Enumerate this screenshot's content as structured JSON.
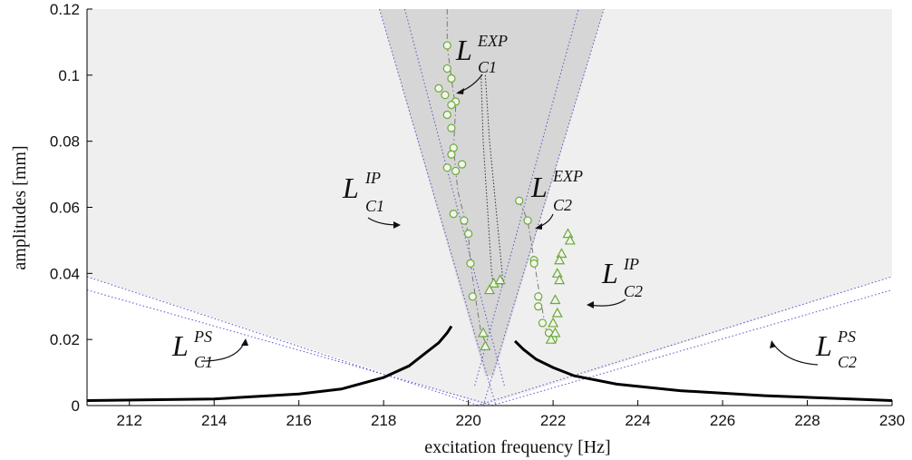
{
  "chart_data": {
    "type": "scatter",
    "xlabel": "excitation frequency [Hz]",
    "ylabel": "amplitudes [mm]",
    "xlim": [
      211,
      230
    ],
    "ylim": [
      0,
      0.12
    ],
    "x_ticks": [
      "212",
      "214",
      "216",
      "218",
      "220",
      "222",
      "224",
      "226",
      "228",
      "230"
    ],
    "y_ticks": [
      "0",
      "0.02",
      "0.04",
      "0.06",
      "0.08",
      "0.1",
      "0.12"
    ],
    "x_tick_values": [
      212,
      214,
      216,
      218,
      220,
      222,
      224,
      226,
      228,
      230
    ],
    "y_tick_values": [
      0,
      0.02,
      0.04,
      0.06,
      0.08,
      0.1,
      0.12
    ],
    "grid": false,
    "colors": {
      "outer_region": "#efefef",
      "inner_region": "#d6d6d6",
      "boundary": "#5555cc",
      "response_curve": "#000000",
      "markers": "#6aaa3a"
    },
    "regions": [
      {
        "name": "PS region",
        "lines": [
          {
            "x0": 211,
            "y0": 0.039,
            "x1": 220.4,
            "y1": 0
          },
          {
            "x0": 220.4,
            "y0": 0,
            "x1": 230,
            "y1": 0.039
          }
        ]
      },
      {
        "name": "IP region",
        "lines": [
          {
            "x0": 217.9,
            "y0": 0.12,
            "x1": 220.4,
            "y1": 0.009
          },
          {
            "x0": 220.6,
            "y0": 0.009,
            "x1": 223.2,
            "y1": 0.12
          }
        ]
      }
    ],
    "response_curve": {
      "left": [
        [
          211,
          0.0015
        ],
        [
          214,
          0.002
        ],
        [
          216,
          0.0035
        ],
        [
          217,
          0.005
        ],
        [
          218,
          0.0085
        ],
        [
          218.6,
          0.012
        ],
        [
          219,
          0.016
        ],
        [
          219.3,
          0.019
        ],
        [
          219.5,
          0.022
        ],
        [
          219.6,
          0.024
        ]
      ],
      "right": [
        [
          221.1,
          0.0195
        ],
        [
          221.3,
          0.017
        ],
        [
          221.6,
          0.014
        ],
        [
          222,
          0.0115
        ],
        [
          222.5,
          0.009
        ],
        [
          223.5,
          0.0065
        ],
        [
          225,
          0.0045
        ],
        [
          227,
          0.003
        ],
        [
          230,
          0.0015
        ]
      ]
    },
    "series": [
      {
        "marker": "circle",
        "values": [
          [
            219.5,
            0.109
          ],
          [
            219.5,
            0.102
          ],
          [
            219.3,
            0.096
          ],
          [
            219.45,
            0.094
          ],
          [
            219.6,
            0.099
          ],
          [
            219.7,
            0.092
          ],
          [
            219.6,
            0.091
          ],
          [
            219.5,
            0.088
          ],
          [
            219.6,
            0.084
          ],
          [
            219.65,
            0.078
          ],
          [
            219.6,
            0.076
          ],
          [
            219.7,
            0.071
          ],
          [
            219.85,
            0.073
          ],
          [
            219.5,
            0.072
          ],
          [
            219.65,
            0.058
          ],
          [
            219.9,
            0.056
          ],
          [
            220.0,
            0.052
          ],
          [
            220.05,
            0.043
          ],
          [
            220.1,
            0.033
          ],
          [
            221.2,
            0.062
          ],
          [
            221.4,
            0.056
          ],
          [
            221.55,
            0.044
          ],
          [
            221.55,
            0.043
          ],
          [
            221.65,
            0.033
          ],
          [
            221.65,
            0.03
          ],
          [
            221.75,
            0.025
          ],
          [
            221.9,
            0.022
          ],
          [
            222.0,
            0.02
          ]
        ]
      },
      {
        "marker": "triangle",
        "values": [
          [
            220.35,
            0.022
          ],
          [
            220.4,
            0.018
          ],
          [
            220.6,
            0.037
          ],
          [
            220.75,
            0.038
          ],
          [
            220.5,
            0.035
          ],
          [
            222.35,
            0.052
          ],
          [
            222.4,
            0.05
          ],
          [
            222.2,
            0.046
          ],
          [
            222.15,
            0.044
          ],
          [
            222.1,
            0.04
          ],
          [
            222.15,
            0.038
          ],
          [
            222.05,
            0.032
          ],
          [
            222.1,
            0.028
          ],
          [
            222.0,
            0.025
          ],
          [
            222.05,
            0.022
          ],
          [
            221.95,
            0.02
          ]
        ]
      }
    ],
    "annotations": [
      {
        "text": "L",
        "sup": "EXP",
        "sub": "C1"
      },
      {
        "text": "L",
        "sup": "EXP",
        "sub": "C2"
      },
      {
        "text": "L",
        "sup": "IP",
        "sub": "C1"
      },
      {
        "text": "L",
        "sup": "IP",
        "sub": "C2"
      },
      {
        "text": "L",
        "sup": "PS",
        "sub": "C1"
      },
      {
        "text": "L",
        "sup": "PS",
        "sub": "C2"
      }
    ]
  }
}
